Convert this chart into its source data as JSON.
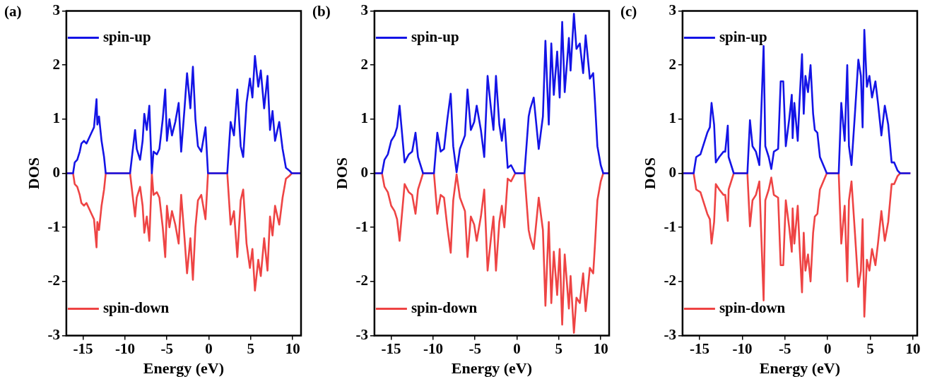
{
  "chart_data": [
    {
      "type": "line",
      "title": "(a)",
      "xlabel": "Energy (eV)",
      "ylabel": "DOS",
      "xlim": [
        -17,
        11
      ],
      "ylim": [
        -3,
        3
      ],
      "xticks": [
        -15,
        -10,
        -5,
        0,
        5,
        10
      ],
      "yticks": [
        -3,
        -2,
        -1,
        0,
        1,
        2,
        3
      ],
      "grid": false,
      "legend": "left",
      "marker": "none",
      "line_style": "solid",
      "x": [
        -17,
        -16.2,
        -16.0,
        -15.7,
        -15.4,
        -15.2,
        -14.9,
        -14.6,
        -14.3,
        -14.0,
        -13.7,
        -13.4,
        -13.3,
        -13.1,
        -12.8,
        -12.5,
        -12.3,
        -9.4,
        -9.1,
        -8.8,
        -8.6,
        -8.2,
        -7.9,
        -7.7,
        -7.4,
        -7.1,
        -6.8,
        -6.6,
        -6.2,
        -5.9,
        -5.5,
        -5.2,
        -5.0,
        -4.7,
        -4.4,
        -4.0,
        -3.6,
        -3.3,
        -2.9,
        -2.6,
        -2.2,
        -1.9,
        -1.6,
        -1.3,
        -0.9,
        -0.4,
        -0.1,
        2.2,
        2.6,
        3.0,
        3.4,
        3.8,
        4.1,
        4.5,
        4.9,
        5.2,
        5.5,
        5.9,
        6.2,
        6.6,
        7.0,
        7.3,
        7.6,
        7.9,
        8.4,
        8.8,
        9.2,
        9.6,
        9.9,
        11
      ],
      "series": [
        {
          "name": "spin-up",
          "color": "#1414e6",
          "values": [
            0,
            0,
            0.2,
            0.25,
            0.4,
            0.55,
            0.6,
            0.55,
            0.65,
            0.75,
            0.85,
            1.37,
            0.9,
            1.05,
            0.6,
            0.3,
            0,
            0,
            0.4,
            0.8,
            0.45,
            0.25,
            0.6,
            1.1,
            0.8,
            1.25,
            0,
            0.4,
            0.35,
            0.45,
            1.0,
            1.55,
            0.6,
            1.0,
            0.7,
            0.95,
            1.3,
            0.4,
            1.2,
            1.85,
            1.2,
            1.97,
            1.0,
            0.5,
            0.4,
            0.85,
            0,
            0,
            0.95,
            0.7,
            1.55,
            0.5,
            0.3,
            1.3,
            1.75,
            1.4,
            2.17,
            1.6,
            1.9,
            1.2,
            1.8,
            0.8,
            1.15,
            0.6,
            0.95,
            0.45,
            0.1,
            0.05,
            0,
            0
          ]
        },
        {
          "name": "spin-down",
          "color": "#ee4444",
          "values": [
            0,
            0,
            -0.2,
            -0.25,
            -0.4,
            -0.55,
            -0.6,
            -0.55,
            -0.65,
            -0.75,
            -0.85,
            -1.37,
            -0.9,
            -1.05,
            -0.6,
            -0.3,
            0,
            0,
            -0.4,
            -0.8,
            -0.45,
            -0.25,
            -0.6,
            -1.1,
            -0.8,
            -1.25,
            0,
            -0.4,
            -0.35,
            -0.45,
            -1.0,
            -1.55,
            -0.6,
            -1.0,
            -0.7,
            -0.95,
            -1.3,
            -0.4,
            -1.2,
            -1.85,
            -1.2,
            -1.97,
            -1.0,
            -0.5,
            -0.4,
            -0.85,
            0,
            0,
            -0.95,
            -0.7,
            -1.55,
            -0.5,
            -0.3,
            -1.3,
            -1.75,
            -1.4,
            -2.17,
            -1.6,
            -1.9,
            -1.2,
            -1.8,
            -0.8,
            -1.15,
            -0.6,
            -0.95,
            -0.45,
            -0.1,
            -0.05,
            0,
            0
          ]
        }
      ]
    },
    {
      "type": "line",
      "title": "(b)",
      "xlabel": "Energy (eV)",
      "ylabel": "DOS",
      "xlim": [
        -17,
        11
      ],
      "ylim": [
        -3,
        3
      ],
      "xticks": [
        -15,
        -10,
        -5,
        0,
        5,
        10
      ],
      "yticks": [
        -3,
        -2,
        -1,
        0,
        1,
        2,
        3
      ],
      "grid": false,
      "legend": "left",
      "marker": "none",
      "line_style": "solid",
      "x": [
        -17,
        -16.1,
        -15.8,
        -15.4,
        -15.0,
        -14.6,
        -14.3,
        -14.0,
        -13.8,
        -13.4,
        -12.9,
        -12.5,
        -12.1,
        -11.8,
        -11.2,
        -9.9,
        -9.5,
        -9.1,
        -8.7,
        -8.3,
        -7.9,
        -7.6,
        -7.2,
        -6.8,
        -6.2,
        -5.9,
        -5.5,
        -5.1,
        -4.8,
        -4.3,
        -3.9,
        -3.5,
        -3.1,
        -2.8,
        -2.5,
        -2.1,
        -1.8,
        -1.5,
        -1.1,
        -0.7,
        -0.2,
        0.9,
        1.4,
        1.6,
        2.0,
        2.6,
        3.1,
        3.4,
        3.8,
        4.1,
        4.4,
        4.8,
        5.1,
        5.4,
        5.7,
        6.2,
        6.4,
        6.8,
        7.1,
        7.5,
        7.9,
        8.2,
        8.7,
        9.1,
        9.3,
        9.6,
        10.0,
        10.3,
        11
      ],
      "series": [
        {
          "name": "spin-up",
          "color": "#1414e6",
          "values": [
            0,
            0,
            0.25,
            0.35,
            0.6,
            0.7,
            0.85,
            1.25,
            0.9,
            0.2,
            0.35,
            0.4,
            0.75,
            0.3,
            0,
            0,
            0.75,
            0.4,
            0.45,
            1.0,
            1.47,
            0.5,
            0.02,
            0.45,
            0.7,
            1.55,
            0.8,
            0.95,
            1.25,
            0.8,
            0.3,
            1.8,
            1.2,
            0.8,
            1.8,
            0.9,
            0.6,
            1.0,
            0.1,
            0.15,
            0,
            0,
            1.05,
            1.2,
            1.4,
            0.45,
            1.05,
            2.45,
            0.9,
            2.4,
            1.45,
            2.25,
            1.4,
            2.8,
            1.5,
            2.5,
            1.9,
            2.95,
            2.3,
            2.4,
            1.85,
            2.55,
            1.75,
            1.85,
            1.35,
            0.5,
            0.15,
            0,
            0
          ]
        },
        {
          "name": "spin-down",
          "color": "#ee4444",
          "values": [
            0,
            0,
            -0.25,
            -0.35,
            -0.6,
            -0.7,
            -0.85,
            -1.25,
            -0.9,
            -0.2,
            -0.35,
            -0.4,
            -0.75,
            -0.3,
            0,
            0,
            -0.75,
            -0.4,
            -0.45,
            -1.0,
            -1.47,
            -0.5,
            -0.02,
            -0.45,
            -0.7,
            -1.55,
            -0.8,
            -0.95,
            -1.25,
            -0.8,
            -0.3,
            -1.8,
            -1.2,
            -0.8,
            -1.8,
            -0.9,
            -0.6,
            -1.0,
            -0.1,
            -0.15,
            0,
            0,
            -1.05,
            -1.2,
            -1.4,
            -0.45,
            -1.05,
            -2.45,
            -0.9,
            -2.4,
            -1.45,
            -2.25,
            -1.4,
            -2.8,
            -1.5,
            -2.5,
            -1.9,
            -2.95,
            -2.3,
            -2.4,
            -1.85,
            -2.55,
            -1.75,
            -1.85,
            -1.35,
            -0.5,
            -0.15,
            0,
            0
          ]
        }
      ]
    },
    {
      "type": "line",
      "title": "(c)",
      "xlabel": "Energy (eV)",
      "ylabel": "DOS",
      "xlim": [
        -17,
        10.5
      ],
      "ylim": [
        -3,
        3
      ],
      "xticks": [
        -15,
        -10,
        -5,
        0,
        5,
        10
      ],
      "yticks": [
        -3,
        -2,
        -1,
        0,
        1,
        2,
        3
      ],
      "grid": false,
      "legend": "left",
      "marker": "none",
      "line_style": "solid",
      "x": [
        -16.9,
        -15.7,
        -15.4,
        -14.9,
        -14.5,
        -14.1,
        -13.8,
        -13.6,
        -13.3,
        -13.1,
        -12.7,
        -12.2,
        -12.0,
        -11.7,
        -11.6,
        -11.0,
        -9.4,
        -9.1,
        -8.8,
        -8.4,
        -8.0,
        -7.5,
        -7.3,
        -6.9,
        -6.6,
        -6.3,
        -5.8,
        -5.5,
        -5.2,
        -4.9,
        -4.5,
        -4.2,
        -4.1,
        -3.9,
        -3.5,
        -3.3,
        -3.0,
        -2.8,
        -2.6,
        -2.3,
        -2.0,
        -1.7,
        -1.5,
        -1.2,
        -0.9,
        -0.5,
        -0.1,
        1.3,
        1.6,
        2.0,
        2.3,
        2.5,
        2.8,
        3.2,
        3.6,
        3.9,
        4.1,
        4.3,
        4.6,
        4.9,
        5.2,
        5.6,
        5.9,
        6.3,
        6.7,
        7.1,
        7.5,
        7.8,
        8.2,
        8.5,
        9.7
      ],
      "series": [
        {
          "name": "spin-up",
          "color": "#1414e6",
          "values": [
            0,
            0,
            0.3,
            0.35,
            0.55,
            0.75,
            0.85,
            1.3,
            0.9,
            0.2,
            0.3,
            0.4,
            0.4,
            0.88,
            0.3,
            0,
            0,
            0.98,
            0.5,
            0.4,
            0.15,
            2.35,
            0.5,
            0.3,
            0.08,
            0.4,
            0.45,
            1.7,
            1.7,
            0.5,
            1.0,
            1.45,
            0.65,
            1.3,
            0.6,
            1.3,
            2.2,
            1.1,
            1.8,
            1.5,
            2.0,
            1.1,
            0.8,
            0.75,
            0.3,
            0.15,
            0,
            0,
            1.3,
            0.6,
            2.0,
            0.5,
            0.15,
            1.1,
            2.1,
            1.8,
            0.85,
            2.65,
            1.6,
            1.8,
            1.4,
            1.7,
            1.3,
            0.7,
            1.25,
            0.9,
            0.2,
            0.2,
            0.05,
            0,
            0
          ]
        },
        {
          "name": "spin-down",
          "color": "#ee4444",
          "values": [
            0,
            0,
            -0.3,
            -0.35,
            -0.55,
            -0.75,
            -0.85,
            -1.3,
            -0.9,
            -0.2,
            -0.3,
            -0.4,
            -0.4,
            -0.88,
            -0.3,
            0,
            0,
            -0.98,
            -0.5,
            -0.4,
            -0.15,
            -2.35,
            -0.5,
            -0.3,
            -0.08,
            -0.4,
            -0.45,
            -1.7,
            -1.7,
            -0.5,
            -1.0,
            -1.45,
            -0.65,
            -1.3,
            -0.6,
            -1.3,
            -2.2,
            -1.1,
            -1.8,
            -1.5,
            -2.0,
            -1.1,
            -0.8,
            -0.75,
            -0.3,
            -0.15,
            0,
            0,
            -1.3,
            -0.6,
            -2.0,
            -0.5,
            -0.15,
            -1.1,
            -2.1,
            -1.8,
            -0.85,
            -2.65,
            -1.6,
            -1.8,
            -1.4,
            -1.7,
            -1.3,
            -0.7,
            -1.25,
            -0.9,
            -0.2,
            -0.2,
            -0.05,
            0,
            0
          ]
        }
      ]
    }
  ]
}
